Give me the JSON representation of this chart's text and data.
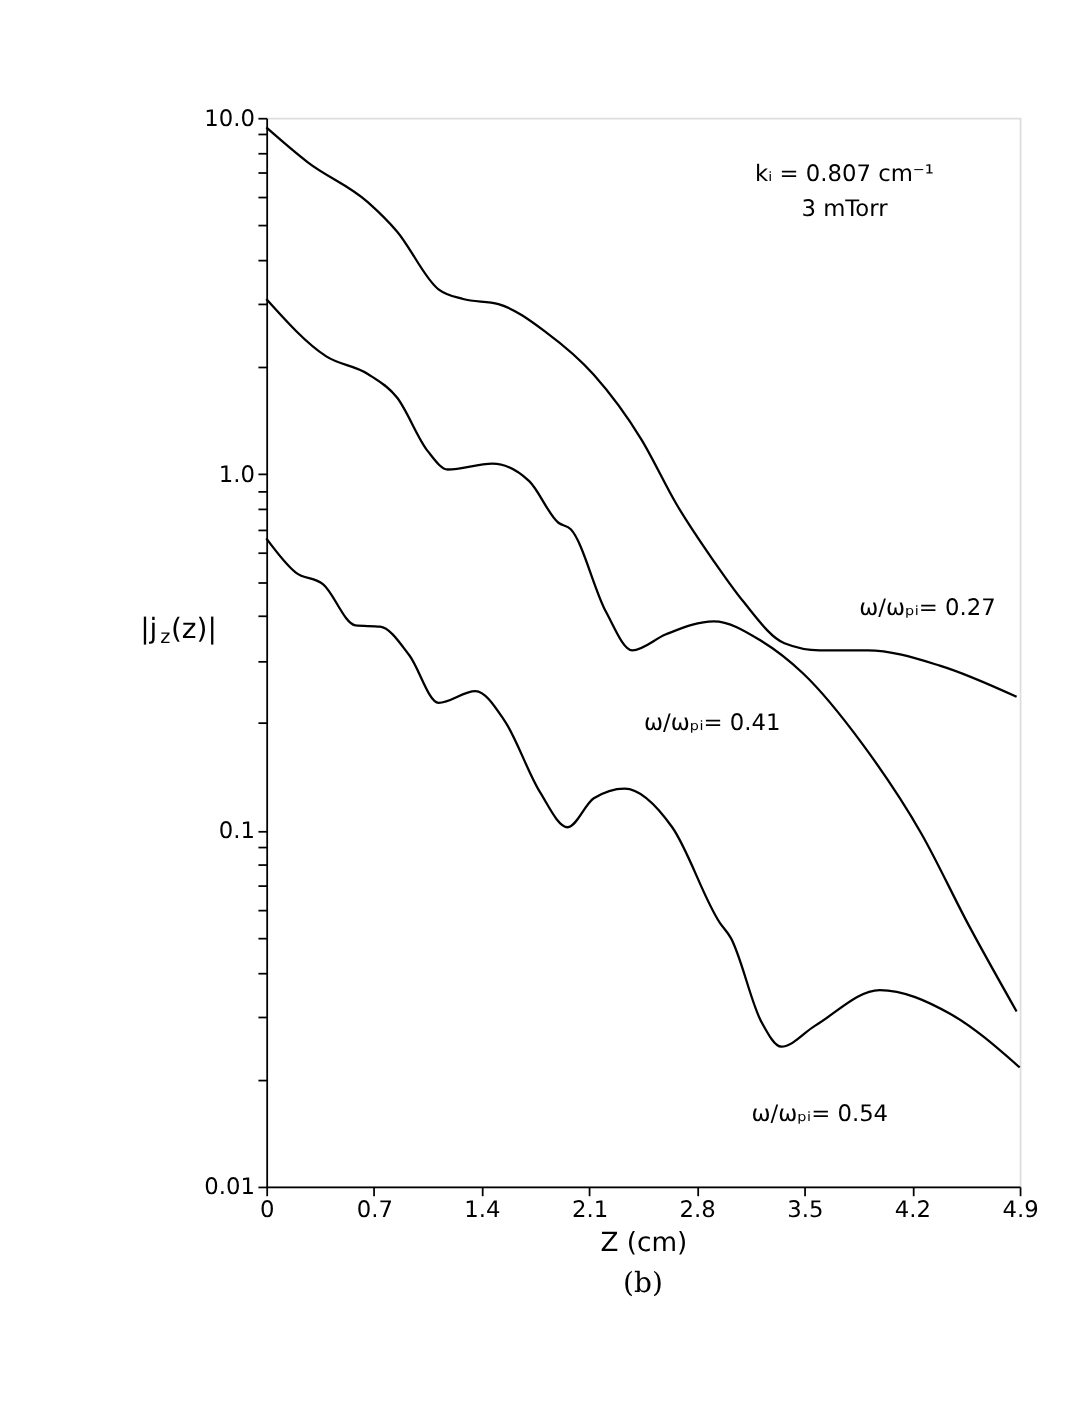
{
  "chart_data": {
    "type": "line",
    "title": "(b)",
    "xlabel": "Z (cm)",
    "ylabel": "|j$_{z}$(z)|",
    "annotations": [
      "kᵢ = 0.807 cm⁻¹",
      "3 mTorr"
    ],
    "log": "y",
    "grid": false,
    "legend": false,
    "marker": "none",
    "line_style": "solid",
    "xlim": [
      0,
      4.9
    ],
    "xticks": [
      0,
      0.7,
      1.4,
      2.1,
      2.8,
      3.5,
      4.2,
      4.9
    ],
    "ylim": [
      0.01,
      10
    ],
    "yticks": [
      {
        "value": 0.01,
        "label": "0.01"
      },
      {
        "value": 0.02,
        "label": null
      },
      {
        "value": 0.03,
        "label": null
      },
      {
        "value": 0.04,
        "label": null
      },
      {
        "value": 0.05,
        "label": null
      },
      {
        "value": 0.06,
        "label": null
      },
      {
        "value": 0.07,
        "label": null
      },
      {
        "value": 0.08,
        "label": null
      },
      {
        "value": 0.09,
        "label": null
      },
      {
        "value": 0.1,
        "label": "0.1"
      },
      {
        "value": 0.2,
        "label": null
      },
      {
        "value": 0.3,
        "label": null
      },
      {
        "value": 0.4,
        "label": null
      },
      {
        "value": 0.5,
        "label": null
      },
      {
        "value": 0.6,
        "label": null
      },
      {
        "value": 0.7,
        "label": null
      },
      {
        "value": 0.8,
        "label": null
      },
      {
        "value": 0.9,
        "label": null
      },
      {
        "value": 1,
        "label": "1.0"
      },
      {
        "value": 2,
        "label": null
      },
      {
        "value": 3,
        "label": null
      },
      {
        "value": 4,
        "label": null
      },
      {
        "value": 5,
        "label": null
      },
      {
        "value": 6,
        "label": null
      },
      {
        "value": 7,
        "label": null
      },
      {
        "value": 8,
        "label": null
      },
      {
        "value": 9,
        "label": null
      },
      {
        "value": 10,
        "label": "10.0"
      }
    ],
    "series": [
      {
        "name": "ω/ωₚᵢ= 0.27",
        "color": "#000000",
        "x": [
          0,
          0.27,
          0.66,
          0.85,
          1.12,
          1.28,
          1.51,
          1.82,
          2.13,
          2.44,
          2.67,
          2.91,
          3.1,
          3.37,
          3.6,
          3.91,
          4.38,
          4.88
        ],
        "values": [
          9.4,
          7.5,
          5.8,
          4.8,
          3.3,
          3.1,
          3.0,
          2.5,
          1.9,
          1.25,
          0.82,
          0.57,
          0.44,
          0.335,
          0.32,
          0.32,
          0.29,
          0.237
        ]
      },
      {
        "name": "ω/ωₚᵢ= 0.41",
        "color": "#000000",
        "x": [
          0,
          0.39,
          0.66,
          0.85,
          1.05,
          1.18,
          1.47,
          1.71,
          1.9,
          1.98,
          2.21,
          2.38,
          2.6,
          2.91,
          3.22,
          3.49,
          3.88,
          4.26,
          4.57,
          4.88
        ],
        "values": [
          3.1,
          2.14,
          1.91,
          1.64,
          1.16,
          1.03,
          1.07,
          0.955,
          0.73,
          0.7,
          0.41,
          0.32,
          0.355,
          0.386,
          0.34,
          0.276,
          0.174,
          0.098,
          0.054,
          0.031
        ]
      },
      {
        "name": "ω/ωₚᵢ= 0.54",
        "color": "#000000",
        "x": [
          0,
          0.19,
          0.37,
          0.58,
          0.74,
          0.93,
          1.12,
          1.36,
          1.55,
          1.78,
          1.96,
          2.13,
          2.33,
          2.64,
          2.95,
          3.02,
          3.22,
          3.35,
          3.57,
          3.99,
          4.45,
          4.9
        ],
        "values": [
          0.66,
          0.53,
          0.49,
          0.376,
          0.373,
          0.31,
          0.228,
          0.246,
          0.203,
          0.128,
          0.102,
          0.123,
          0.131,
          0.102,
          0.055,
          0.05,
          0.029,
          0.0247,
          0.0283,
          0.0356,
          0.0305,
          0.0216
        ]
      }
    ]
  }
}
